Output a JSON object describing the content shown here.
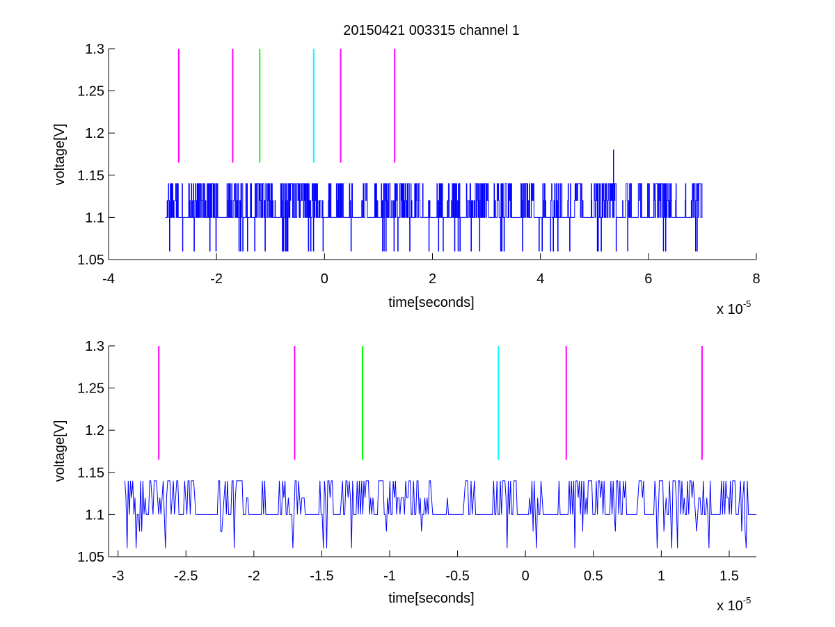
{
  "figure": {
    "title": "20150421 003315 channel 1"
  },
  "chart_data": [
    {
      "type": "line",
      "title": "20150421 003315 channel 1",
      "xlabel": "time[seconds]",
      "ylabel": "voltage[V]",
      "x_exponent_label": "x 10",
      "x_exponent": "-5",
      "xlim": [
        -4,
        8
      ],
      "ylim": [
        1.05,
        1.3
      ],
      "xticks": [
        -4,
        -2,
        0,
        2,
        4,
        6,
        8
      ],
      "xtick_labels": [
        "-4",
        "-2",
        "0",
        "2",
        "4",
        "6",
        "8"
      ],
      "yticks": [
        1.05,
        1.1,
        1.15,
        1.2,
        1.25,
        1.3
      ],
      "ytick_labels": [
        "1.05",
        "1.1",
        "1.15",
        "1.2",
        "1.25",
        "1.3"
      ],
      "grid": false,
      "signal": {
        "color": "#0000ff",
        "x_range": [
          -2.95,
          7.0
        ],
        "levels": [
          1.06,
          1.1,
          1.12,
          1.14
        ],
        "baseline": 1.1,
        "spike": {
          "x": 5.35,
          "y": 1.18
        }
      },
      "markers": [
        {
          "x": -2.7,
          "color": "#ff00ff"
        },
        {
          "x": -1.7,
          "color": "#ff00ff"
        },
        {
          "x": -1.2,
          "color": "#00ff00"
        },
        {
          "x": -0.2,
          "color": "#00ffff"
        },
        {
          "x": 0.3,
          "color": "#ff00ff"
        },
        {
          "x": 1.3,
          "color": "#ff00ff"
        }
      ],
      "marker_y_range": [
        1.165,
        1.3
      ]
    },
    {
      "type": "line",
      "title": "",
      "xlabel": "time[seconds]",
      "ylabel": "voltage[V]",
      "x_exponent_label": "x 10",
      "x_exponent": "-5",
      "xlim": [
        -3.07,
        1.7
      ],
      "ylim": [
        1.05,
        1.3
      ],
      "xticks": [
        -3,
        -2.5,
        -2,
        -1.5,
        -1,
        -0.5,
        0,
        0.5,
        1,
        1.5
      ],
      "xtick_labels": [
        "-3",
        "-2.5",
        "-2",
        "-1.5",
        "-1",
        "-0.5",
        "0",
        "0.5",
        "1",
        "1.5"
      ],
      "yticks": [
        1.05,
        1.1,
        1.15,
        1.2,
        1.25,
        1.3
      ],
      "ytick_labels": [
        "1.05",
        "1.1",
        "1.15",
        "1.2",
        "1.25",
        "1.3"
      ],
      "grid": false,
      "signal": {
        "color": "#0000ff",
        "x_range": [
          -2.95,
          1.7
        ],
        "levels": [
          1.06,
          1.08,
          1.1,
          1.12,
          1.14
        ],
        "baseline": 1.1
      },
      "markers": [
        {
          "x": -2.7,
          "color": "#ff00ff"
        },
        {
          "x": -1.7,
          "color": "#ff00ff"
        },
        {
          "x": -1.2,
          "color": "#00ff00"
        },
        {
          "x": -0.2,
          "color": "#00ffff"
        },
        {
          "x": 0.3,
          "color": "#ff00ff"
        },
        {
          "x": 1.3,
          "color": "#ff00ff"
        }
      ],
      "marker_y_range": [
        1.165,
        1.3
      ]
    }
  ]
}
